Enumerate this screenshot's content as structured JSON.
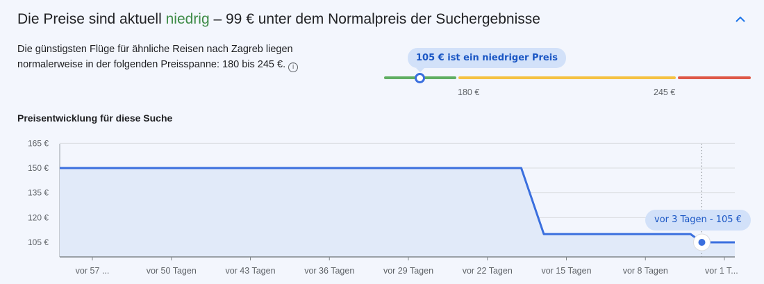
{
  "header": {
    "title_prefix": "Die Preise sind aktuell ",
    "title_status": "niedrig",
    "title_suffix": " – 99 € unter dem Normalpreis der Suchergebnisse"
  },
  "summary": {
    "text": "Die günstigsten Flüge für ähnliche Reisen nach Zagreb liegen normalerweise in der folgenden Preisspanne: 180 bis 245 €.",
    "info_icon": "info-icon"
  },
  "range": {
    "bubble": "105 € ist ein niedriger Preis",
    "low_label": "180 €",
    "high_label": "245 €",
    "current": 105,
    "low": 180,
    "high": 245,
    "colors": {
      "low": "#5fae62",
      "mid": "#f5c242",
      "high": "#de5847"
    }
  },
  "chart_data": {
    "type": "line",
    "title": "Preisentwicklung für diese Suche",
    "xlabel": "",
    "ylabel": "",
    "x_unit": "days ago",
    "xlim": [
      60,
      0
    ],
    "ylim": [
      98,
      168
    ],
    "y_ticks": [
      165,
      150,
      135,
      120,
      105
    ],
    "y_tick_labels": [
      "165 €",
      "150 €",
      "135 €",
      "120 €",
      "105 €"
    ],
    "x_ticks": [
      57,
      50,
      43,
      36,
      29,
      22,
      15,
      8,
      1
    ],
    "x_tick_labels": [
      "vor 57 ...",
      "vor 50 Tagen",
      "vor 43 Tagen",
      "vor 36 Tagen",
      "vor 29 Tagen",
      "vor 22 Tagen",
      "vor 15 Tagen",
      "vor 8 Tagen",
      "vor 1 T..."
    ],
    "series": [
      {
        "name": "Preis",
        "color": "#3a6fde",
        "points": [
          [
            60,
            150
          ],
          [
            19,
            150
          ],
          [
            17,
            110
          ],
          [
            4,
            110
          ],
          [
            3,
            105
          ],
          [
            0,
            105
          ]
        ]
      }
    ],
    "highlight": {
      "x": 3,
      "y": 105,
      "label": "vor 3 Tagen - 105 €"
    },
    "grid": true
  }
}
